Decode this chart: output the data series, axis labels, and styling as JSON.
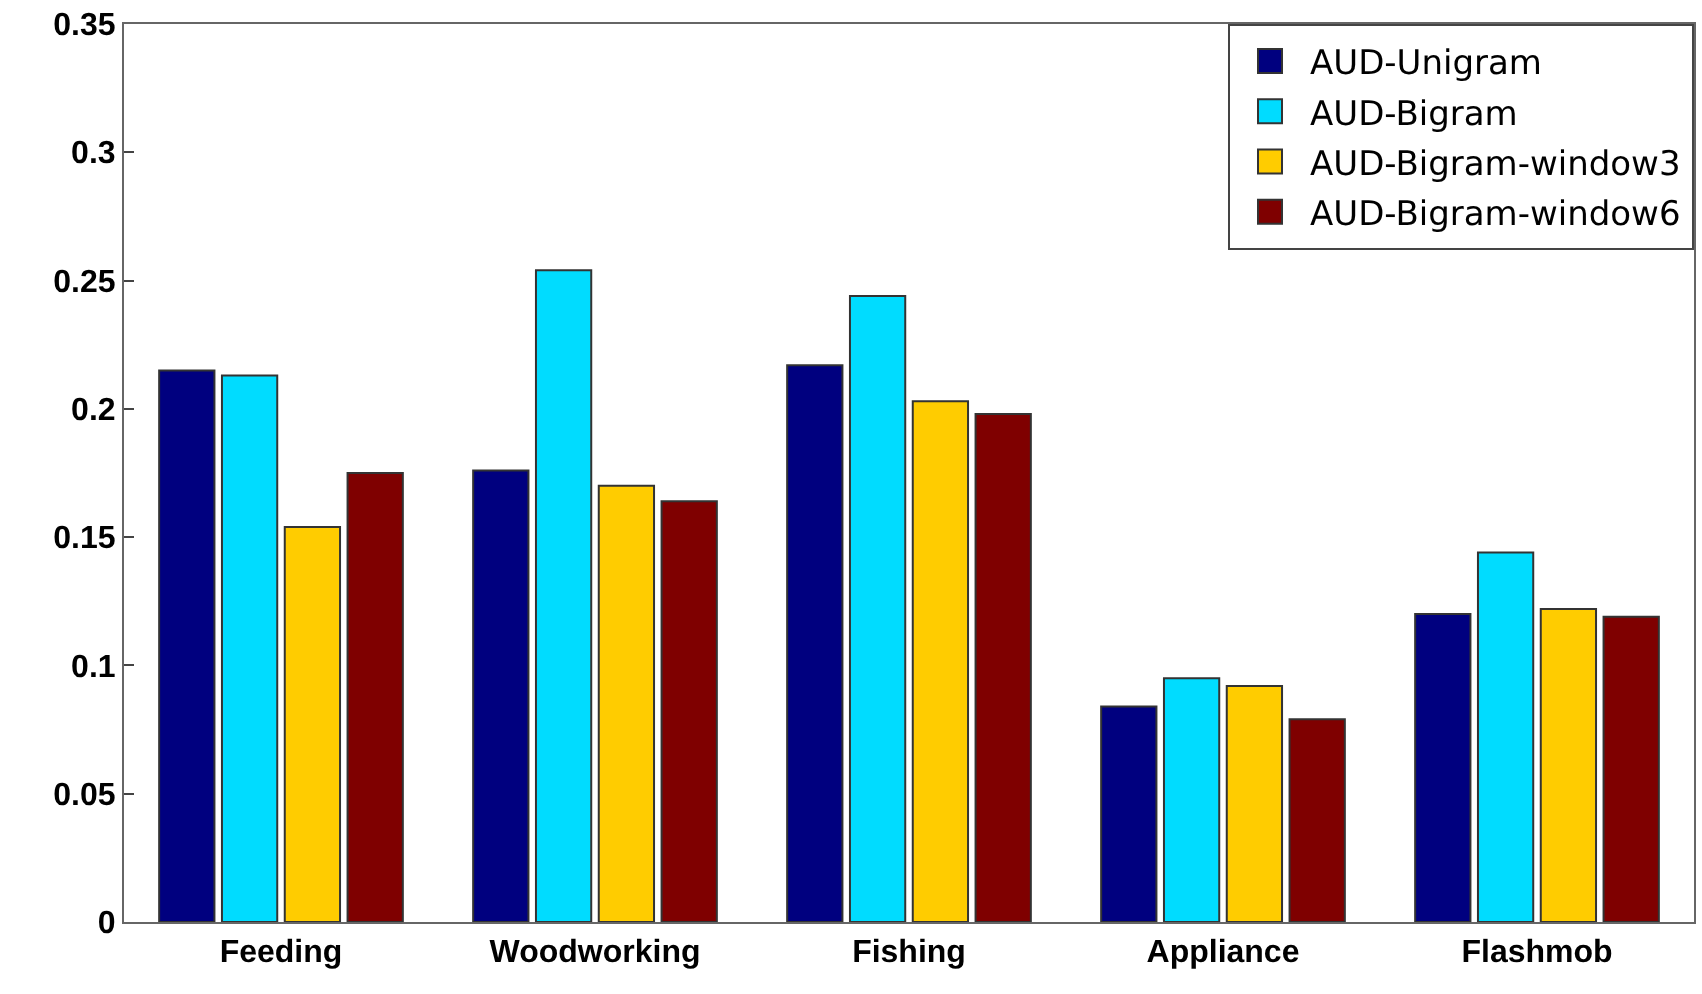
{
  "chart_data": {
    "type": "bar",
    "categories": [
      "Feeding",
      "Woodworking",
      "Fishing",
      "Appliance",
      "Flashmob"
    ],
    "series": [
      {
        "name": "AUD-Unigram",
        "color": "#00007f",
        "values": [
          0.215,
          0.176,
          0.217,
          0.084,
          0.12
        ]
      },
      {
        "name": "AUD-Bigram",
        "color": "#00dcff",
        "values": [
          0.213,
          0.254,
          0.244,
          0.095,
          0.144
        ]
      },
      {
        "name": "AUD-Bigram-window3",
        "color": "#ffcc00",
        "values": [
          0.154,
          0.17,
          0.203,
          0.092,
          0.122
        ]
      },
      {
        "name": "AUD-Bigram-window6",
        "color": "#7f0000",
        "values": [
          0.175,
          0.164,
          0.198,
          0.079,
          0.119
        ]
      }
    ],
    "ylim": [
      0,
      0.35
    ],
    "yticks": [
      {
        "value": 0,
        "label": "0"
      },
      0.05,
      0.1,
      0.15,
      0.2,
      0.25,
      0.3,
      0.35
    ],
    "legend": "top right"
  }
}
